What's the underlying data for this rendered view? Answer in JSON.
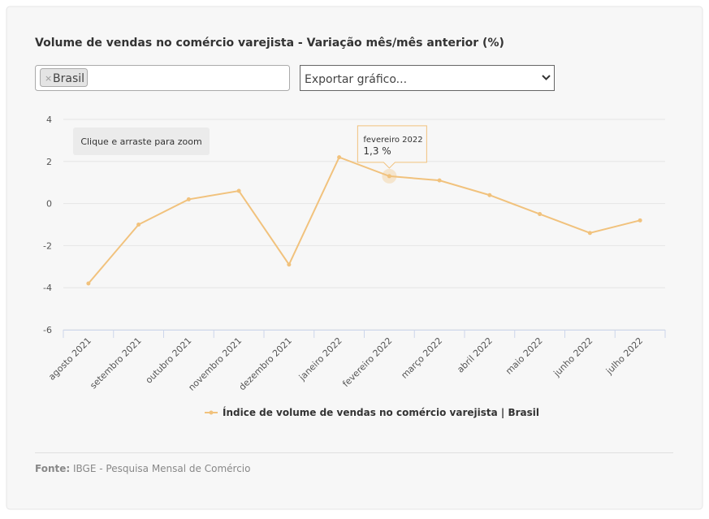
{
  "chart_data": {
    "type": "line",
    "title": "Volume de vendas no comércio varejista - Variação mês/mês anterior (%)",
    "filter_tag": "Brasil",
    "filter_remove": "×",
    "export_select": "Exportar gráfico...",
    "zoom_hint": "Clique e arraste para zoom",
    "categories": [
      "agosto 2021",
      "setembro 2021",
      "outubro 2021",
      "novembro 2021",
      "dezembro 2021",
      "janeiro 2022",
      "fevereiro 2022",
      "março 2022",
      "abril 2022",
      "maio 2022",
      "junho 2022",
      "julho 2022"
    ],
    "series": [
      {
        "name": "Índice de volume de vendas no comércio varejista | Brasil",
        "color": "#f1c27d",
        "values": [
          -3.8,
          -1.0,
          0.2,
          0.6,
          -2.9,
          2.2,
          1.3,
          1.1,
          0.4,
          -0.5,
          -1.4,
          -0.8
        ]
      }
    ],
    "tooltip": {
      "title": "fevereiro 2022",
      "value": "1,3 %"
    },
    "ylim": [
      -6,
      4
    ],
    "yticks": [
      -6,
      -4,
      -2,
      0,
      2,
      4
    ],
    "grid": true,
    "legend": "bottom",
    "footer": {
      "label": "Fonte:",
      "text": "IBGE - Pesquisa Mensal de Comércio"
    }
  }
}
